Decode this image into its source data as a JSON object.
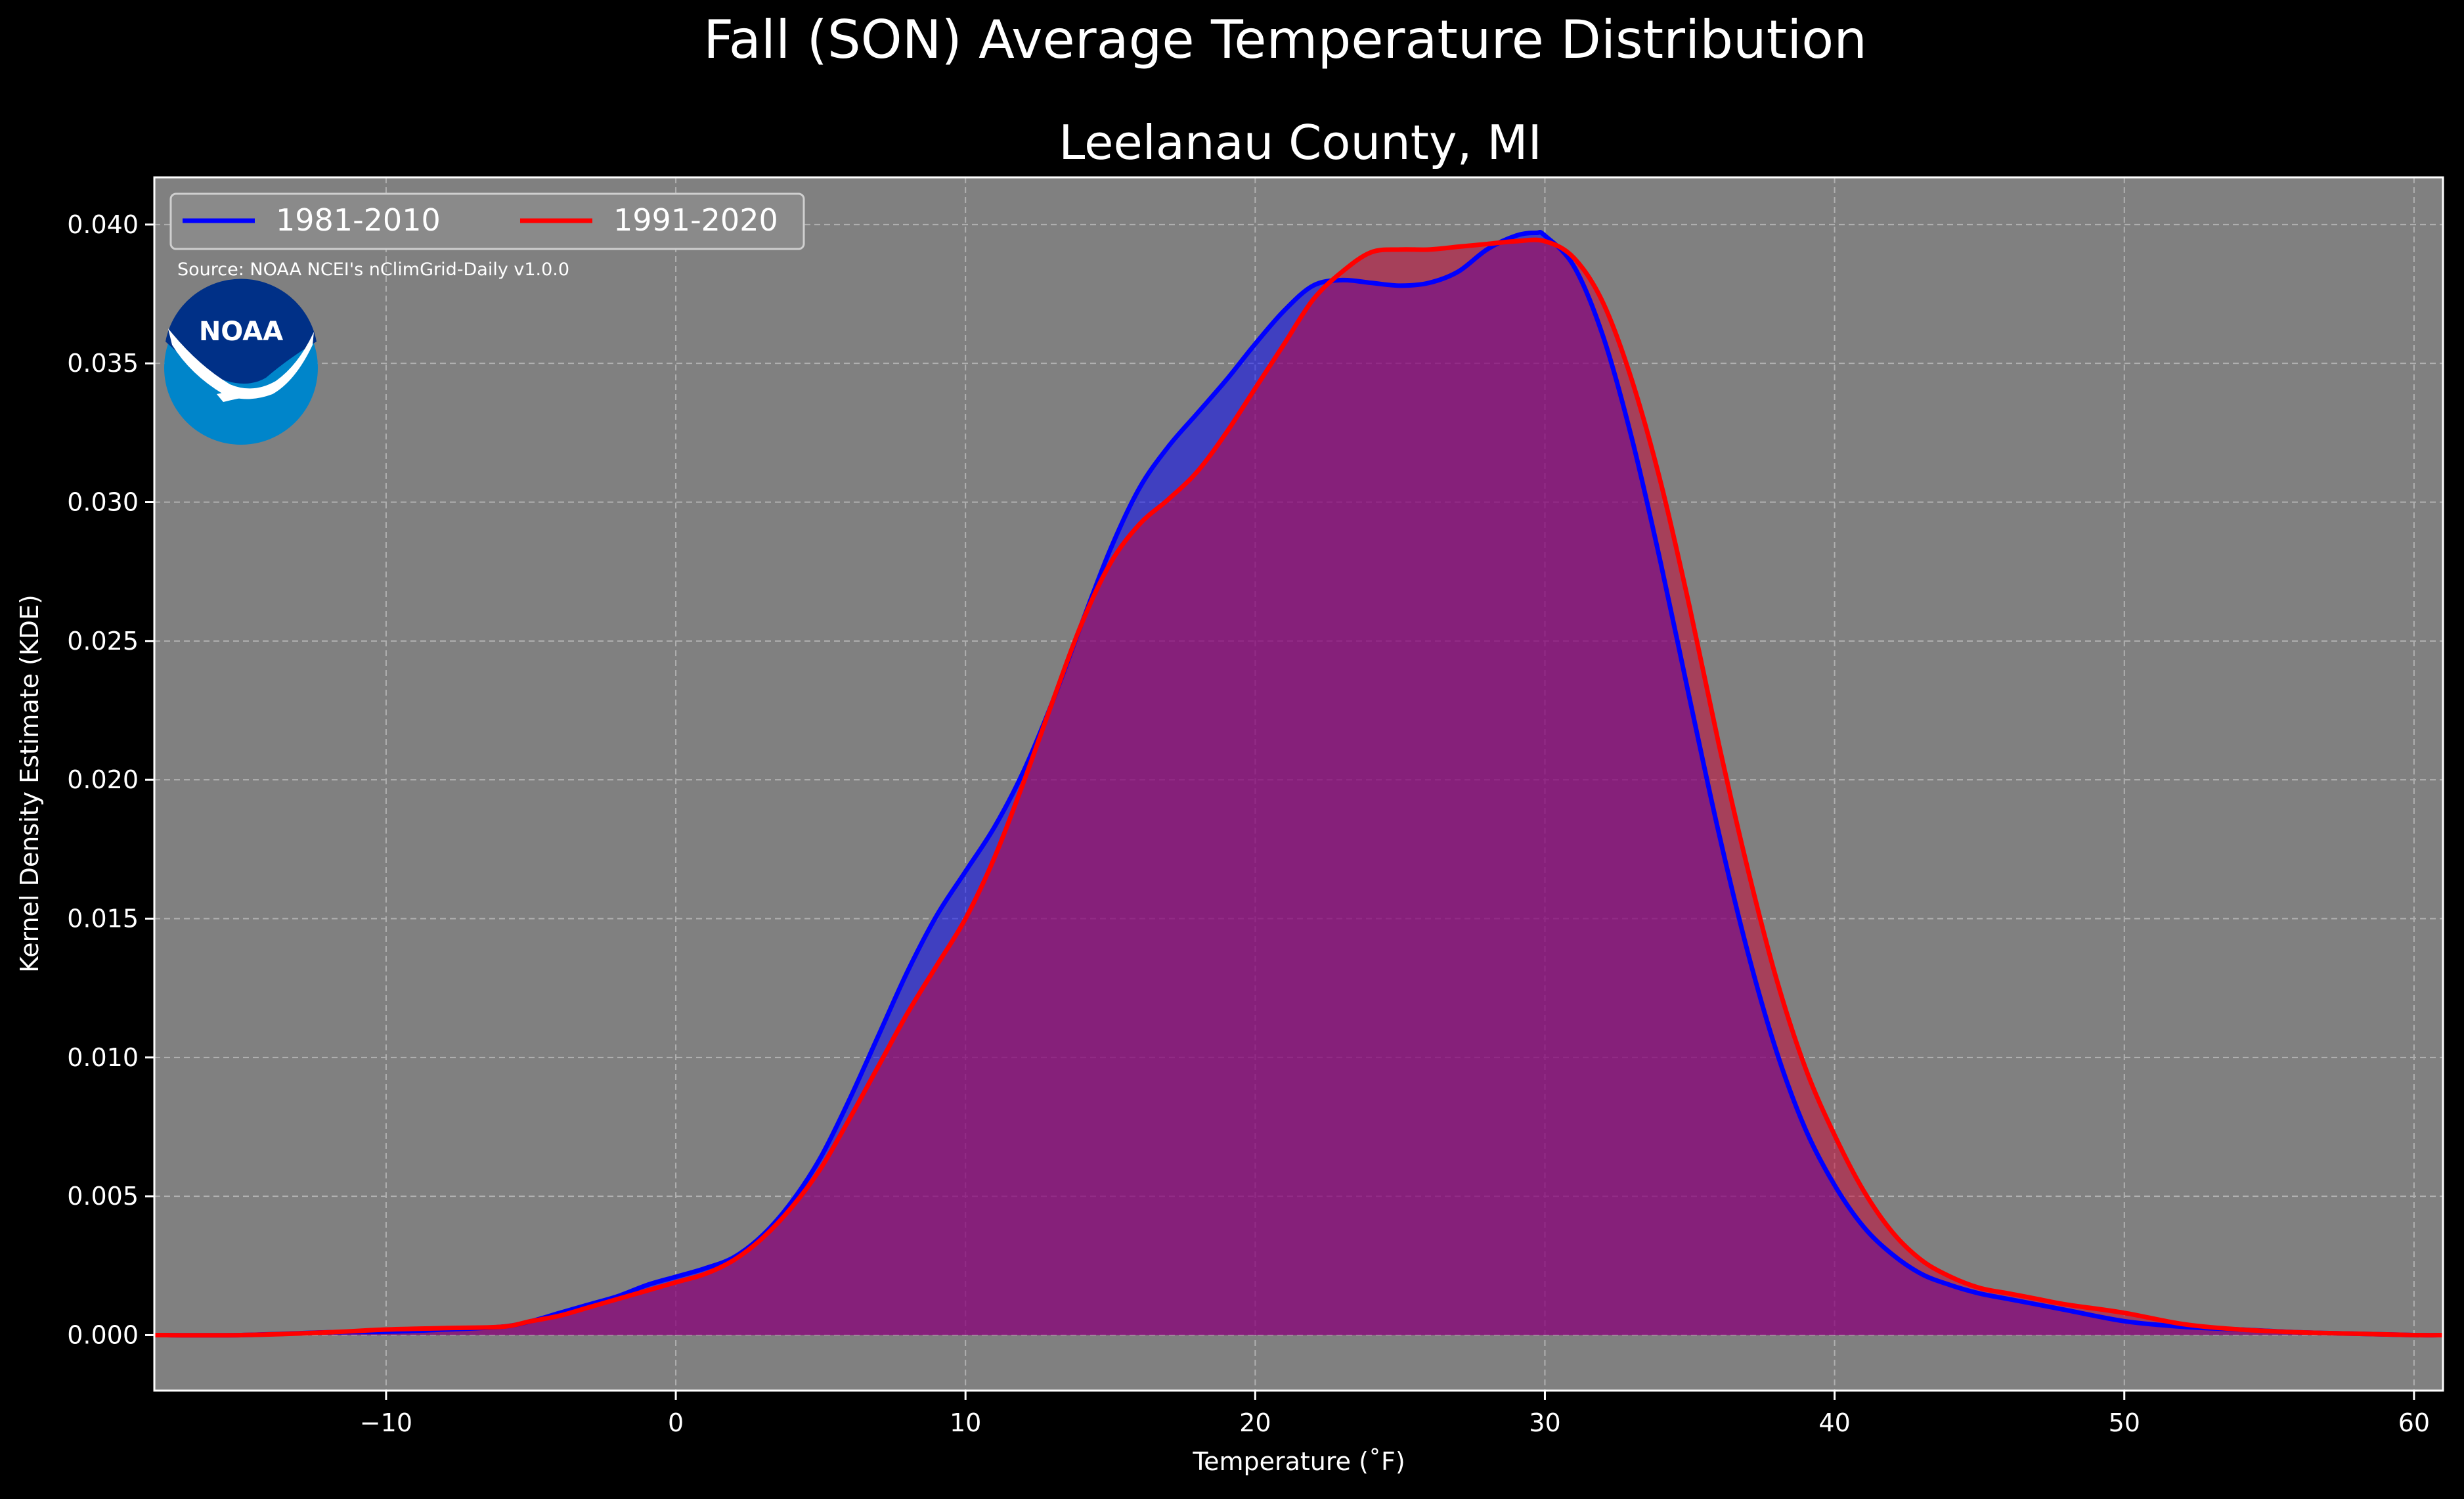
{
  "chart_data": {
    "type": "area",
    "title": "Fall (SON) Average Temperature Distribution",
    "subtitle": "Leelanau County, MI",
    "xlabel": "Temperature (˚F)",
    "ylabel": "Kernel Density Estimate (KDE)",
    "xlim": [
      -18,
      61
    ],
    "ylim": [
      -0.002,
      0.0417
    ],
    "xticks": [
      -10,
      0,
      10,
      20,
      30,
      40,
      50,
      60
    ],
    "xtick_labels": [
      "−10",
      "0",
      "10",
      "20",
      "30",
      "40",
      "50",
      "60"
    ],
    "yticks": [
      0.0,
      0.005,
      0.01,
      0.015,
      0.02,
      0.025,
      0.03,
      0.035,
      0.04
    ],
    "ytick_labels": [
      "0.000",
      "0.005",
      "0.010",
      "0.015",
      "0.020",
      "0.025",
      "0.030",
      "0.035",
      "0.040"
    ],
    "grid": true,
    "legend_placement": "top-left",
    "source_note": "Source: NOAA NCEI's nClimGrid-Daily v1.0.0",
    "logo_text": "NOAA",
    "colors": {
      "background": "#000000",
      "plot_background": "#808080",
      "grid": "#b0b0b0",
      "series_1981": "#0000ff",
      "series_1991": "#ff0000",
      "fill_1981": "#0000ff",
      "fill_1991": "#cc0033",
      "logo_outer": "#0085ca",
      "logo_inner": "#003087"
    },
    "series": [
      {
        "name": "1981-2010",
        "color": "#0000ff",
        "x": [
          -18,
          -15,
          -12,
          -10,
          -8,
          -6,
          -5,
          -4,
          -3,
          -2,
          -1,
          0,
          1,
          2,
          3,
          4,
          5,
          6,
          7,
          8,
          9,
          10,
          11,
          12,
          13,
          14,
          15,
          16,
          17,
          18,
          19,
          20,
          21,
          22,
          23,
          24,
          25,
          26,
          27,
          28,
          29,
          29.7,
          30,
          31,
          32,
          33,
          34,
          35,
          36,
          37,
          38,
          39,
          40,
          41,
          42,
          43,
          44,
          45,
          46,
          47,
          48,
          50,
          52,
          54,
          56,
          58,
          60,
          61
        ],
        "y": [
          0.0,
          0.0,
          0.0001,
          0.00012,
          0.0002,
          0.0003,
          0.0005,
          0.0008,
          0.0011,
          0.0014,
          0.0018,
          0.0021,
          0.0024,
          0.0028,
          0.0036,
          0.0048,
          0.0064,
          0.0085,
          0.0108,
          0.0131,
          0.0151,
          0.0167,
          0.0183,
          0.0203,
          0.0228,
          0.0256,
          0.0283,
          0.0305,
          0.032,
          0.0332,
          0.0344,
          0.0357,
          0.0369,
          0.0378,
          0.038,
          0.0379,
          0.0378,
          0.0379,
          0.0383,
          0.0391,
          0.0396,
          0.0397,
          0.0396,
          0.0385,
          0.036,
          0.0323,
          0.0278,
          0.0229,
          0.0181,
          0.0138,
          0.0102,
          0.0074,
          0.0054,
          0.0039,
          0.0029,
          0.0022,
          0.0018,
          0.0015,
          0.0013,
          0.0011,
          0.0009,
          0.0005,
          0.0003,
          0.0002,
          0.0001,
          5e-05,
          0.0,
          0.0
        ]
      },
      {
        "name": "1991-2020",
        "color": "#ff0000",
        "x": [
          -18,
          -15,
          -12,
          -10,
          -8,
          -6,
          -5,
          -4,
          -3,
          -2,
          -1,
          0,
          1,
          2,
          3,
          4,
          5,
          6,
          7,
          8,
          9,
          10,
          11,
          12,
          13,
          14,
          15,
          16,
          17,
          18,
          19,
          20,
          21,
          22,
          23,
          24,
          25,
          26,
          27,
          28,
          29,
          30,
          31,
          32,
          33,
          34,
          35,
          36,
          37,
          38,
          39,
          40,
          41,
          42,
          43,
          44,
          45,
          46,
          47,
          48,
          50,
          52,
          54,
          56,
          58,
          60,
          61
        ],
        "y": [
          0.0,
          0.0,
          0.0001,
          0.0002,
          0.00025,
          0.0003,
          0.0005,
          0.0007,
          0.001,
          0.0013,
          0.0016,
          0.0019,
          0.0022,
          0.0027,
          0.0035,
          0.0046,
          0.006,
          0.0078,
          0.0097,
          0.0116,
          0.0133,
          0.015,
          0.0172,
          0.0199,
          0.0228,
          0.0256,
          0.0278,
          0.0292,
          0.0301,
          0.0311,
          0.0325,
          0.0341,
          0.0357,
          0.0373,
          0.0383,
          0.039,
          0.0391,
          0.0391,
          0.0392,
          0.0393,
          0.0394,
          0.0394,
          0.0388,
          0.0372,
          0.0344,
          0.0307,
          0.0262,
          0.0213,
          0.0168,
          0.0128,
          0.0096,
          0.0072,
          0.0052,
          0.0037,
          0.0027,
          0.0021,
          0.0017,
          0.0015,
          0.0013,
          0.0011,
          0.0008,
          0.0004,
          0.0002,
          0.0001,
          5e-05,
          0.0,
          0.0
        ]
      }
    ]
  }
}
